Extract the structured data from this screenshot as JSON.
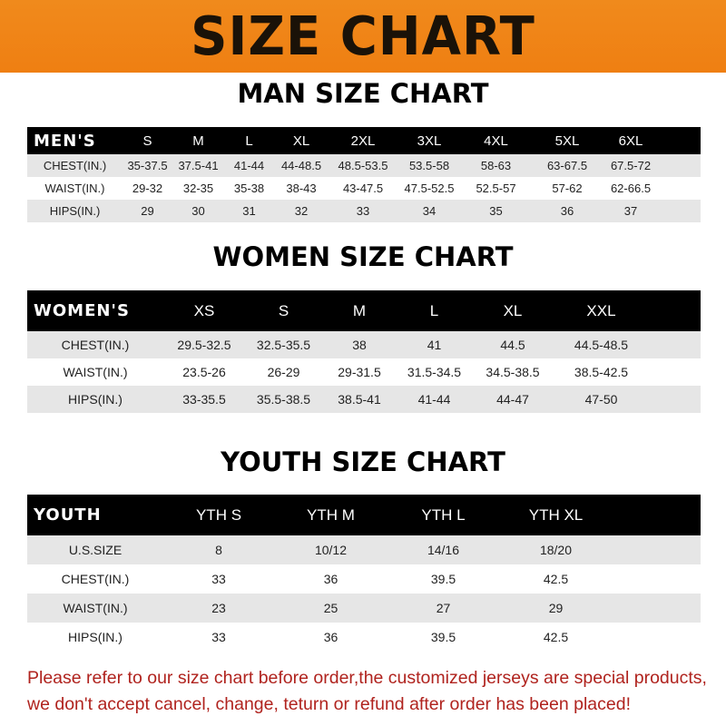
{
  "banner_title": "SIZE CHART",
  "men": {
    "title": "MAN SIZE CHART",
    "header": [
      "MEN'S",
      "S",
      "M",
      "L",
      "XL",
      "2XL",
      "3XL",
      "4XL",
      "5XL",
      "6XL"
    ],
    "rows": [
      [
        "CHEST(IN.)",
        "35-37.5",
        "37.5-41",
        "41-44",
        "44-48.5",
        "48.5-53.5",
        "53.5-58",
        "58-63",
        "63-67.5",
        "67.5-72"
      ],
      [
        "WAIST(IN.)",
        "29-32",
        "32-35",
        "35-38",
        "38-43",
        "43-47.5",
        "47.5-52.5",
        "52.5-57",
        "57-62",
        "62-66.5"
      ],
      [
        "HIPS(IN.)",
        "29",
        "30",
        "31",
        "32",
        "33",
        "34",
        "35",
        "36",
        "37"
      ]
    ]
  },
  "women": {
    "title": "WOMEN SIZE CHART",
    "header": [
      "WOMEN'S",
      "XS",
      "S",
      "M",
      "L",
      "XL",
      "XXL"
    ],
    "rows": [
      [
        "CHEST(IN.)",
        "29.5-32.5",
        "32.5-35.5",
        "38",
        "41",
        "44.5",
        "44.5-48.5"
      ],
      [
        "WAIST(IN.)",
        "23.5-26",
        "26-29",
        "29-31.5",
        "31.5-34.5",
        "34.5-38.5",
        "38.5-42.5"
      ],
      [
        "HIPS(IN.)",
        "33-35.5",
        "35.5-38.5",
        "38.5-41",
        "41-44",
        "44-47",
        "47-50"
      ]
    ]
  },
  "youth": {
    "title": "YOUTH SIZE CHART",
    "header": [
      "YOUTH",
      "YTH S",
      "YTH M",
      "YTH L",
      "YTH XL"
    ],
    "rows": [
      [
        "U.S.SIZE",
        "8",
        "10/12",
        "14/16",
        "18/20"
      ],
      [
        "CHEST(IN.)",
        "33",
        "36",
        "39.5",
        "42.5"
      ],
      [
        "WAIST(IN.)",
        "23",
        "25",
        "27",
        "29"
      ],
      [
        "HIPS(IN.)",
        "33",
        "36",
        "39.5",
        "42.5"
      ]
    ]
  },
  "footer": {
    "line1": "Please refer to our size chart before order,the customized jerseys are special products,",
    "line2": "we don't accept cancel, change, teturn or refund after order has been placed!"
  },
  "colors": {
    "banner": "#ef8418",
    "header_row": "#000000",
    "stripe": "#e6e6e6",
    "notice": "#b0231e"
  }
}
